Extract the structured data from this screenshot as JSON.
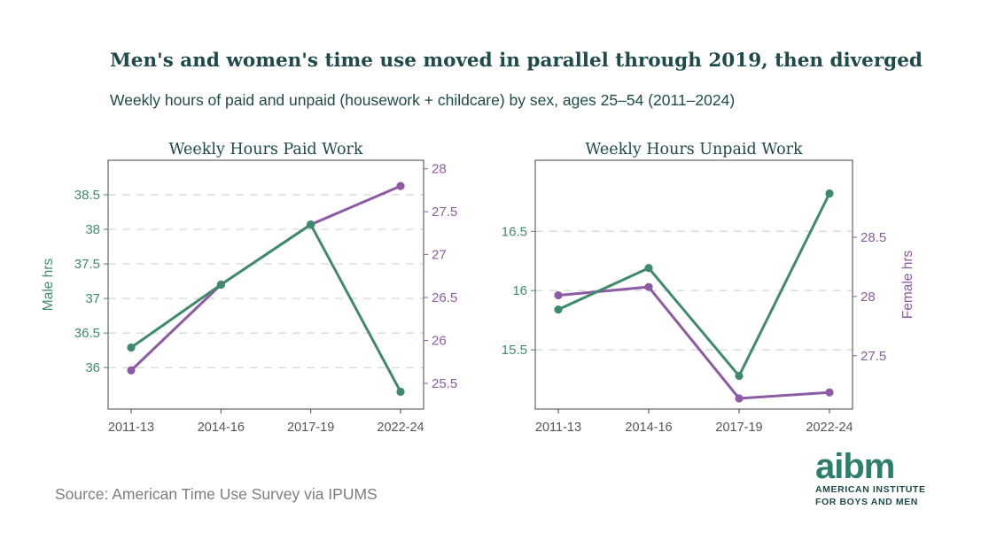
{
  "page": {
    "title": "Men's and women's time use moved in parallel through 2019, then diverged",
    "subtitle": "Weekly hours of paid and unpaid (housework + childcare) by sex, ages 25–54 (2011–2024)",
    "source": "Source: American Time Use Survey via IPUMS"
  },
  "logo": {
    "wordmark": "aibm",
    "line1": "AMERICAN INSTITUTE",
    "line2": "FOR BOYS AND MEN",
    "color": "#2d7e6b"
  },
  "colors": {
    "male": "#3f8a6c",
    "female": "#8d5aa5",
    "title": "#1e4a4a",
    "grid": "#d4d4d4",
    "frame": "#444444",
    "tick": "#555555"
  },
  "axis_labels": {
    "male": "Male hrs",
    "female": "Female hrs"
  },
  "chart_data": [
    {
      "type": "line",
      "title": "Weekly Hours Paid Work",
      "categories": [
        "2011-13",
        "2014-16",
        "2017-19",
        "2022-24"
      ],
      "y_left": {
        "ylim": [
          35.4,
          39.0
        ],
        "ticks": [
          36,
          36.5,
          37,
          37.5,
          38,
          38.5
        ],
        "tick_labels": [
          "36",
          "36.5",
          "37",
          "37.5",
          "38",
          "38.5"
        ]
      },
      "y_right": {
        "ylim": [
          25.2,
          28.1
        ],
        "ticks": [
          25.5,
          26,
          26.5,
          27,
          27.5,
          28
        ],
        "tick_labels": [
          "25.5",
          "26",
          "26.5",
          "27",
          "27.5",
          "28"
        ]
      },
      "grid": "horizontal-dashed",
      "series": [
        {
          "key": "male",
          "axis": "left",
          "values": [
            36.29,
            37.2,
            38.07,
            35.65
          ]
        },
        {
          "key": "female",
          "axis": "right",
          "values": [
            25.65,
            26.65,
            27.35,
            27.8
          ]
        }
      ]
    },
    {
      "type": "line",
      "title": "Weekly Hours Unpaid Work",
      "categories": [
        "2011-13",
        "2014-16",
        "2017-19",
        "2022-24"
      ],
      "y_left": {
        "ylim": [
          15.0,
          17.1
        ],
        "ticks": [
          15.5,
          16,
          16.5
        ],
        "tick_labels": [
          "15.5",
          "16",
          "16.5"
        ]
      },
      "y_right": {
        "ylim": [
          27.05,
          29.15
        ],
        "ticks": [
          27.5,
          28,
          28.5
        ],
        "tick_labels": [
          "27.5",
          "28",
          "28.5"
        ]
      },
      "grid": "horizontal-dashed",
      "series": [
        {
          "key": "male",
          "axis": "left",
          "values": [
            15.84,
            16.19,
            15.28,
            16.82
          ]
        },
        {
          "key": "female",
          "axis": "right",
          "values": [
            28.01,
            28.08,
            27.14,
            27.19
          ]
        }
      ]
    }
  ]
}
